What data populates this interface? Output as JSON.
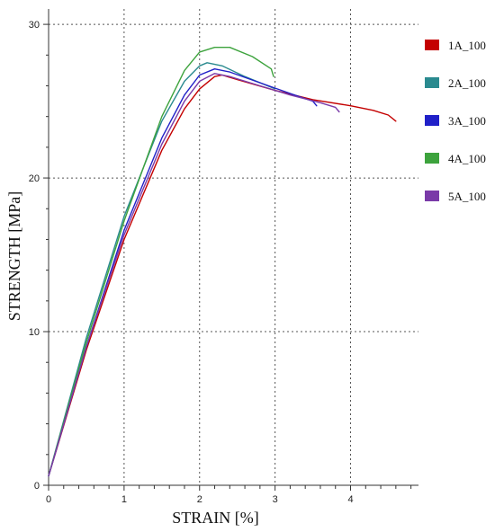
{
  "chart_data": {
    "type": "line",
    "xlabel": "STRAIN [%]",
    "ylabel": "STRENGTH [MPa]",
    "xlim": [
      0,
      4.9
    ],
    "ylim": [
      0,
      31
    ],
    "x_ticks": [
      0,
      1,
      2,
      3,
      4
    ],
    "y_ticks": [
      0,
      10,
      20,
      30
    ],
    "grid": true,
    "legend_position": "right",
    "series": [
      {
        "name": "1A_100",
        "color": "#c40000",
        "points": [
          [
            0,
            0.6
          ],
          [
            0.5,
            8.8
          ],
          [
            1.0,
            16.0
          ],
          [
            1.5,
            21.8
          ],
          [
            1.8,
            24.5
          ],
          [
            2.0,
            25.8
          ],
          [
            2.2,
            26.6
          ],
          [
            2.3,
            26.7
          ],
          [
            2.5,
            26.4
          ],
          [
            3.0,
            25.7
          ],
          [
            3.5,
            25.1
          ],
          [
            4.0,
            24.7
          ],
          [
            4.3,
            24.4
          ],
          [
            4.5,
            24.1
          ],
          [
            4.6,
            23.7
          ]
        ]
      },
      {
        "name": "2A_100",
        "color": "#2a8a8f",
        "points": [
          [
            0,
            0.6
          ],
          [
            0.5,
            9.6
          ],
          [
            1.0,
            17.5
          ],
          [
            1.5,
            23.7
          ],
          [
            1.8,
            26.3
          ],
          [
            2.0,
            27.3
          ],
          [
            2.1,
            27.5
          ],
          [
            2.3,
            27.3
          ],
          [
            2.6,
            26.6
          ],
          [
            3.0,
            25.8
          ]
        ]
      },
      {
        "name": "3A_100",
        "color": "#2020c8",
        "points": [
          [
            0,
            0.6
          ],
          [
            0.5,
            9.0
          ],
          [
            1.0,
            16.6
          ],
          [
            1.5,
            22.6
          ],
          [
            1.8,
            25.4
          ],
          [
            2.0,
            26.7
          ],
          [
            2.2,
            27.1
          ],
          [
            2.4,
            26.9
          ],
          [
            2.8,
            26.2
          ],
          [
            3.2,
            25.5
          ],
          [
            3.5,
            25.0
          ],
          [
            3.55,
            24.7
          ]
        ]
      },
      {
        "name": "4A_100",
        "color": "#3da33d",
        "points": [
          [
            0,
            0.6
          ],
          [
            0.5,
            9.3
          ],
          [
            1.0,
            17.2
          ],
          [
            1.5,
            24.0
          ],
          [
            1.8,
            27.0
          ],
          [
            2.0,
            28.2
          ],
          [
            2.2,
            28.5
          ],
          [
            2.4,
            28.5
          ],
          [
            2.7,
            27.9
          ],
          [
            2.95,
            27.1
          ],
          [
            2.98,
            26.6
          ]
        ]
      },
      {
        "name": "5A_100",
        "color": "#7a3aa8",
        "points": [
          [
            0,
            0.6
          ],
          [
            0.5,
            9.0
          ],
          [
            1.0,
            16.3
          ],
          [
            1.5,
            22.2
          ],
          [
            1.8,
            25.0
          ],
          [
            2.0,
            26.3
          ],
          [
            2.2,
            26.8
          ],
          [
            2.4,
            26.6
          ],
          [
            2.8,
            26.0
          ],
          [
            3.2,
            25.4
          ],
          [
            3.6,
            24.9
          ],
          [
            3.8,
            24.6
          ],
          [
            3.85,
            24.3
          ]
        ]
      }
    ]
  }
}
